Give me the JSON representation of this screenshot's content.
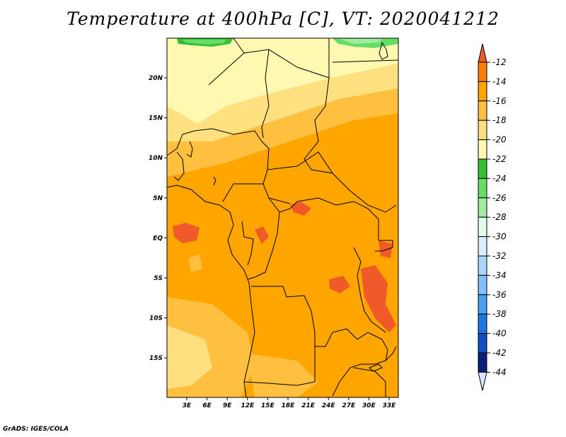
{
  "title": "Temperature at 400hPa [C], VT: 2020041212",
  "footer": "GrADS: IGES/COLA",
  "map": {
    "lat_ticks": [
      "20N",
      "15N",
      "10N",
      "5N",
      "EQ",
      "5S",
      "10S",
      "15S"
    ],
    "lon_ticks": [
      "3E",
      "6E",
      "9E",
      "12E",
      "15E",
      "18E",
      "21E",
      "24E",
      "27E",
      "30E",
      "33E"
    ]
  },
  "colorbar": {
    "labels": [
      "-12",
      "-14",
      "-16",
      "-18",
      "-20",
      "-22",
      "-24",
      "-26",
      "-28",
      "-30",
      "-32",
      "-34",
      "-36",
      "-38",
      "-40",
      "-42",
      "-44"
    ],
    "colors": [
      "#f05a28",
      "#ff7f00",
      "#ffa500",
      "#ffc040",
      "#ffe080",
      "#fff8b0",
      "#34c034",
      "#66dd66",
      "#a0eca0",
      "#e0ffe8",
      "#d8f0ff",
      "#a8d8ff",
      "#80c0ff",
      "#4aa0f0",
      "#1e78e0",
      "#1050c0",
      "#0a1e7a",
      "#dce6ff"
    ]
  }
}
